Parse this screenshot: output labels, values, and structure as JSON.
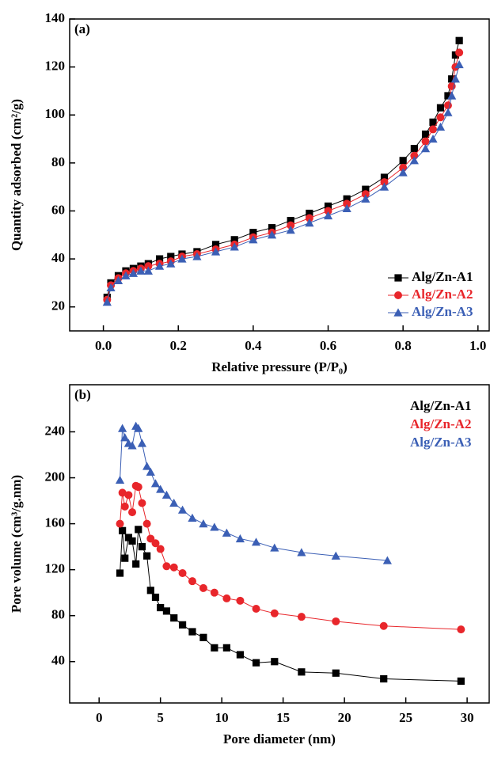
{
  "chart_data": [
    {
      "type": "line",
      "annotation": "(a)",
      "xlabel": "Relative pressure (P/P₀)",
      "ylabel": "Quantity adsorbed (cm²/g)",
      "x": [
        0.01,
        0.02,
        0.04,
        0.06,
        0.08,
        0.1,
        0.12,
        0.15,
        0.18,
        0.21,
        0.25,
        0.3,
        0.35,
        0.4,
        0.45,
        0.5,
        0.55,
        0.6,
        0.65,
        0.7,
        0.75,
        0.8,
        0.83,
        0.86,
        0.88,
        0.9,
        0.92,
        0.93,
        0.94,
        0.95
      ],
      "series": [
        {
          "name": "Alg/Zn-A1",
          "color": "#000000",
          "marker": "square",
          "values": [
            24,
            30,
            33,
            35,
            36,
            37,
            38,
            40,
            41,
            42,
            43,
            46,
            48,
            51,
            53,
            56,
            59,
            62,
            65,
            69,
            74,
            81,
            86,
            92,
            97,
            103,
            108,
            115,
            125,
            131
          ]
        },
        {
          "name": "Alg/Zn-A2",
          "color": "#e8262b",
          "marker": "circle",
          "values": [
            23,
            29,
            32,
            34,
            35,
            36,
            37,
            38,
            39,
            41,
            42,
            44,
            46,
            49,
            51,
            54,
            57,
            60,
            63,
            67,
            72,
            78,
            83,
            89,
            94,
            99,
            104,
            112,
            120,
            126
          ]
        },
        {
          "name": "Alg/Zn-A3",
          "color": "#3b5fb5",
          "marker": "triangle",
          "values": [
            22,
            28,
            31,
            33,
            34,
            35,
            35,
            37,
            38,
            40,
            41,
            43,
            45,
            48,
            50,
            52,
            55,
            58,
            61,
            65,
            70,
            76,
            81,
            86,
            90,
            95,
            101,
            108,
            115,
            121
          ]
        }
      ],
      "xlim": [
        -0.09,
        1.03
      ],
      "ylim": [
        10,
        140
      ],
      "xticks": [
        {
          "value": 0,
          "label": "0.0"
        },
        0.2,
        0.4,
        0.6,
        0.8,
        {
          "value": 1,
          "label": "1.0"
        }
      ],
      "yticks": [
        20,
        40,
        60,
        80,
        100,
        120,
        140
      ],
      "legend": "lower right",
      "legend_markers": true
    },
    {
      "type": "line",
      "annotation": "(b)",
      "xlabel": "Pore diameter (nm)",
      "ylabel": "Pore volume (cm³/g.nm)",
      "series": [
        {
          "name": "Alg/Zn-A1",
          "color": "#000000",
          "marker": "square",
          "x": [
            1.7,
            1.9,
            2.1,
            2.4,
            2.7,
            3.0,
            3.2,
            3.5,
            3.9,
            4.2,
            4.6,
            5.0,
            5.5,
            6.1,
            6.8,
            7.6,
            8.5,
            9.4,
            10.4,
            11.5,
            12.8,
            14.3,
            16.5,
            19.3,
            23.2,
            29.5
          ],
          "values": [
            117,
            154,
            130,
            148,
            145,
            125,
            155,
            140,
            132,
            102,
            96,
            87,
            84,
            78,
            72,
            66,
            61,
            52,
            52,
            46,
            39,
            40,
            31,
            30,
            25,
            23
          ]
        },
        {
          "name": "Alg/Zn-A2",
          "color": "#e8262b",
          "marker": "circle",
          "x": [
            1.7,
            1.9,
            2.1,
            2.4,
            2.7,
            3.0,
            3.2,
            3.5,
            3.9,
            4.2,
            4.6,
            5.0,
            5.5,
            6.1,
            6.8,
            7.6,
            8.5,
            9.4,
            10.4,
            11.5,
            12.8,
            14.3,
            16.5,
            19.3,
            23.2,
            29.5
          ],
          "values": [
            160,
            187,
            175,
            185,
            170,
            193,
            192,
            178,
            160,
            147,
            143,
            138,
            123,
            122,
            117,
            110,
            104,
            100,
            95,
            93,
            86,
            82,
            79,
            75,
            71,
            68
          ]
        },
        {
          "name": "Alg/Zn-A3",
          "color": "#3b5fb5",
          "marker": "triangle",
          "x": [
            1.7,
            1.9,
            2.1,
            2.4,
            2.7,
            3.0,
            3.2,
            3.5,
            3.9,
            4.2,
            4.6,
            5.0,
            5.5,
            6.1,
            6.8,
            7.6,
            8.5,
            9.4,
            10.4,
            11.5,
            12.8,
            14.3,
            16.5,
            19.3,
            23.5
          ],
          "values": [
            198,
            243,
            235,
            230,
            228,
            245,
            243,
            230,
            210,
            205,
            195,
            190,
            185,
            178,
            172,
            165,
            160,
            157,
            152,
            147,
            144,
            139,
            135,
            132,
            128
          ]
        }
      ],
      "xlim": [
        -2.4,
        31.8
      ],
      "ylim": [
        4,
        281
      ],
      "xticks": [
        0,
        5,
        10,
        15,
        20,
        25,
        30
      ],
      "yticks": [
        40,
        80,
        120,
        160,
        200,
        240
      ],
      "legend": "upper right",
      "legend_markers": false
    }
  ]
}
